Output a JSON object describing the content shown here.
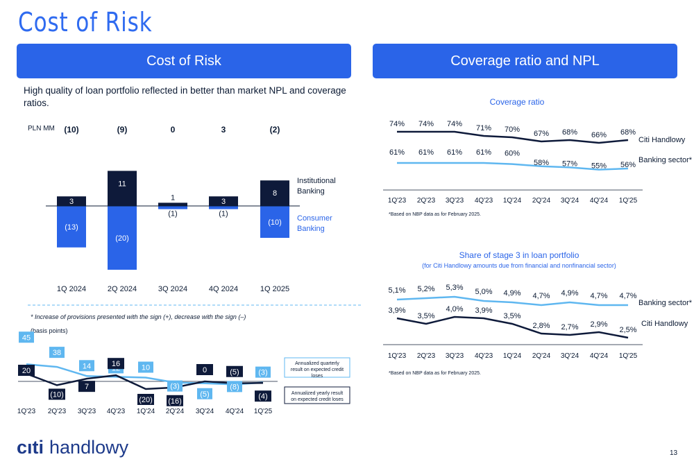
{
  "page": {
    "title": "Cost of Risk",
    "banner_left": "Cost of Risk",
    "banner_right": "Coverage ratio and  NPL",
    "subtitle": "High quality of loan portfolio reflected in better than market NPL and coverage ratios.",
    "footnote_provisions": "* Increase of provisions presented with the sign (+), decrease with the sign (–)",
    "basis_points": "(basis points)",
    "logo_mark": "cıti",
    "logo_text": "handlowy",
    "page_number": "13"
  },
  "colors": {
    "navy": "#0e1a3a",
    "blue": "#2a64e8",
    "light_blue": "#5fb7f0",
    "title_blue": "#2f6bf0"
  },
  "chart_data": [
    {
      "id": "cost_of_risk_bars",
      "type": "bar",
      "unit_label": "PLN MM",
      "categories": [
        "1Q 2024",
        "2Q 2024",
        "3Q 2024",
        "4Q 2024",
        "1Q 2025"
      ],
      "totals": [
        "(10)",
        "(9)",
        "0",
        "3",
        "(2)"
      ],
      "series": [
        {
          "name": "Institutional Banking",
          "values": [
            3,
            11,
            1,
            3,
            8
          ],
          "labels": [
            "3",
            "11",
            "1",
            "3",
            "8"
          ],
          "color": "#0e1a3a"
        },
        {
          "name": "Consumer Banking",
          "values": [
            -13,
            -20,
            -1,
            -1,
            -10
          ],
          "labels": [
            "(13)",
            "(20)",
            "(1)",
            "(1)",
            "(10)"
          ],
          "color": "#2a64e8"
        }
      ],
      "legend": [
        "Institutional Banking",
        "Consumer Banking"
      ]
    },
    {
      "id": "cor_basis_points",
      "type": "line",
      "categories": [
        "1Q'23",
        "2Q'23",
        "3Q'23",
        "4Q'23",
        "1Q'24",
        "2Q'24",
        "3Q'24",
        "4Q'24",
        "1Q'25"
      ],
      "series": [
        {
          "name": "Annualized quarterly result on expected credit loses",
          "values": [
            45,
            38,
            14,
            12,
            10,
            -3,
            -5,
            -8,
            -3
          ],
          "labels": [
            "45",
            "38",
            "14",
            "12",
            "10",
            "(3)",
            "(5)",
            "(8)",
            "(3)"
          ],
          "color": "#5fb7f0"
        },
        {
          "name": "Annualized yearly result on expected credit loses",
          "values": [
            20,
            -10,
            7,
            16,
            -20,
            -16,
            0,
            -5,
            -4
          ],
          "labels": [
            "20",
            "(10)",
            "7",
            "16",
            "(20)",
            "(16)",
            "0",
            "(5)",
            "(4)"
          ],
          "color": "#0e1a3a"
        }
      ]
    },
    {
      "id": "coverage_ratio",
      "type": "line",
      "title": "Coverage ratio",
      "categories": [
        "1Q'23",
        "2Q'23",
        "3Q'23",
        "4Q'23",
        "1Q'24",
        "2Q'24",
        "3Q'24",
        "4Q'24",
        "1Q'25"
      ],
      "series": [
        {
          "name": "Citi Handlowy",
          "values": [
            74,
            74,
            74,
            71,
            70,
            67,
            68,
            66,
            68
          ],
          "labels": [
            "74%",
            "74%",
            "74%",
            "71%",
            "70%",
            "67%",
            "68%",
            "66%",
            "68%"
          ],
          "color": "#0e1a3a"
        },
        {
          "name": "Banking sector*",
          "values": [
            61,
            61,
            61,
            61,
            60,
            58,
            57,
            55,
            56
          ],
          "labels": [
            "61%",
            "61%",
            "61%",
            "61%",
            "60%",
            "58%",
            "57%",
            "55%",
            "56%"
          ],
          "color": "#5fb7f0"
        }
      ],
      "note": "*Based on NBP data as for February 2025."
    },
    {
      "id": "stage3_share",
      "type": "line",
      "title": "Share of stage 3 in loan portfolio",
      "subtitle": "(for Citi Handlowy amounts due from financial and nonfinancial sector)",
      "categories": [
        "1Q'23",
        "2Q'23",
        "3Q'23",
        "4Q'23",
        "1Q'24",
        "2Q'24",
        "3Q'24",
        "4Q'24",
        "1Q'25"
      ],
      "series": [
        {
          "name": "Banking sector*",
          "values": [
            5.1,
            5.2,
            5.3,
            5.0,
            4.9,
            4.7,
            4.9,
            4.7,
            4.7
          ],
          "labels": [
            "5,1%",
            "5,2%",
            "5,3%",
            "5,0%",
            "4,9%",
            "4,7%",
            "4,9%",
            "4,7%",
            "4,7%"
          ],
          "color": "#5fb7f0"
        },
        {
          "name": "Citi Handlowy",
          "values": [
            3.9,
            3.5,
            4.0,
            3.9,
            3.5,
            2.8,
            2.7,
            2.9,
            2.5
          ],
          "labels": [
            "3,9%",
            "3,5%",
            "4,0%",
            "3,9%",
            "3,5%",
            "2,8%",
            "2,7%",
            "2,9%",
            "2,5%"
          ],
          "color": "#0e1a3a"
        }
      ],
      "note": "*Based on NBP data as for February 2025."
    }
  ]
}
